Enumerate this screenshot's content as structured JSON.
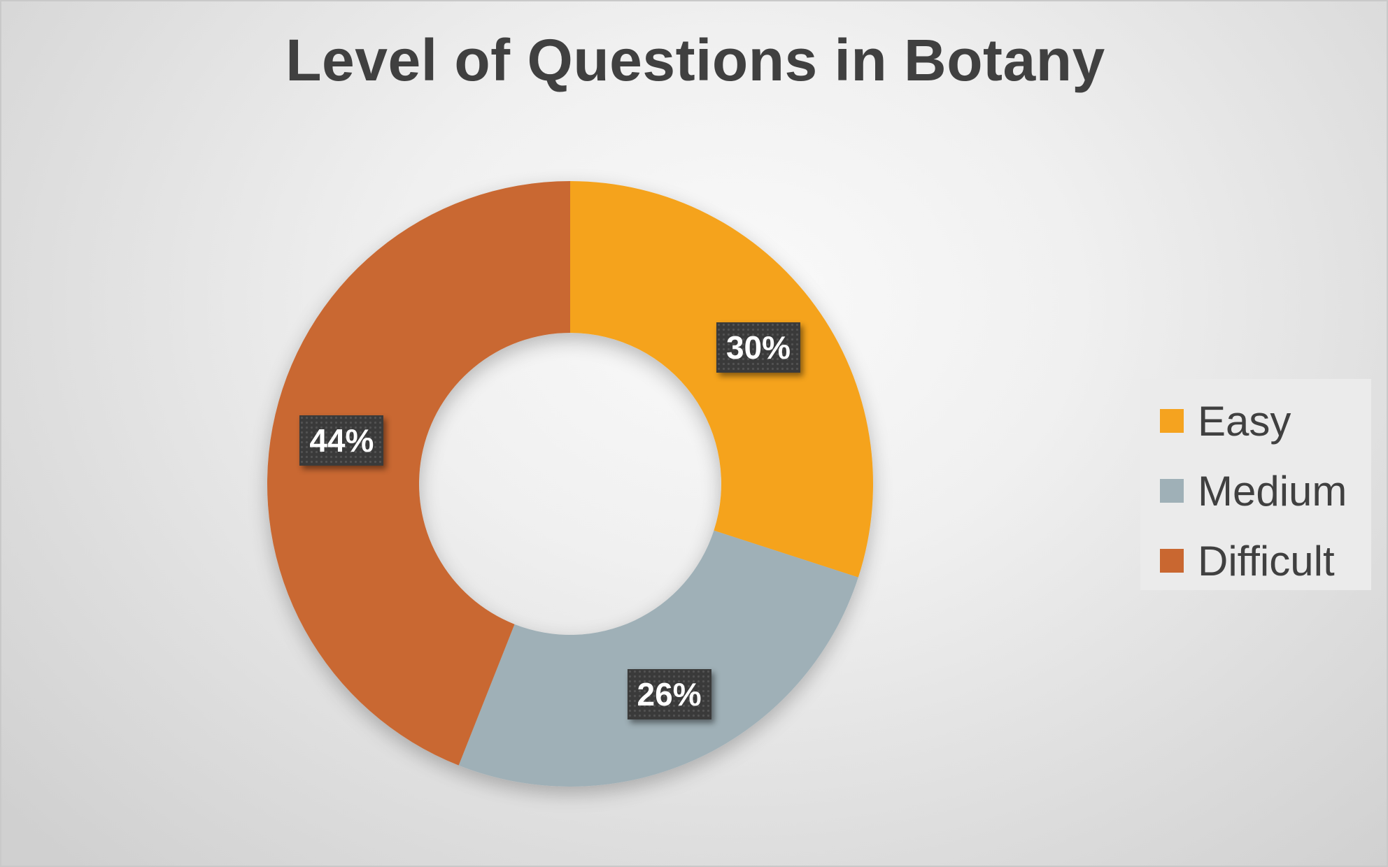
{
  "chart_data": {
    "type": "pie",
    "variant": "donut",
    "title": "Level of Questions in Botany",
    "categories": [
      "Easy",
      "Medium",
      "Difficult"
    ],
    "values": [
      30,
      26,
      44
    ],
    "labels": [
      "30%",
      "26%",
      "44%"
    ],
    "colors": [
      "#f5a31f",
      "#9fb0b7",
      "#c96730"
    ],
    "legend_position": "right"
  }
}
